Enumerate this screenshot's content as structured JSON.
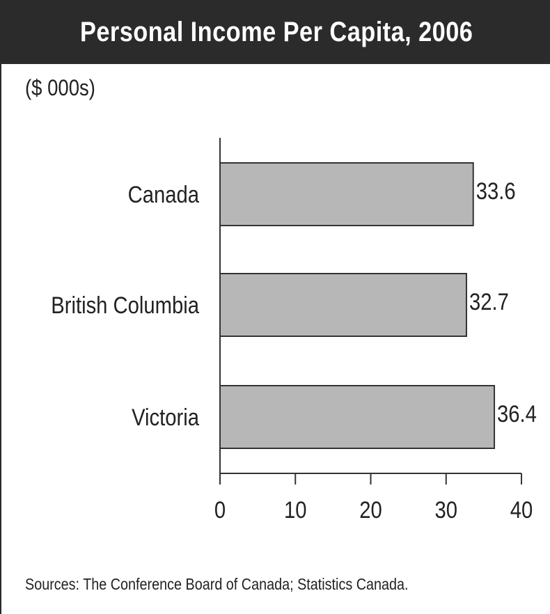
{
  "chart_data": {
    "type": "bar",
    "orientation": "horizontal",
    "title": "Personal Income Per Capita, 2006",
    "unit_label": "($ 000s)",
    "categories": [
      "Canada",
      "British Columbia",
      "Victoria"
    ],
    "values": [
      33.6,
      32.7,
      36.4
    ],
    "value_labels": [
      "33.6",
      "32.7",
      "36.4"
    ],
    "xlim": [
      0,
      40
    ],
    "xticks": [
      0,
      10,
      20,
      30,
      40
    ],
    "xtick_labels": [
      "0",
      "10",
      "20",
      "30",
      "40"
    ],
    "grid": false,
    "bar_color": "#b7b7b7",
    "bar_edge_color": "#333333",
    "source_note": "Sources: The Conference Board of Canada; Statistics Canada."
  },
  "colors": {
    "title_background": "#2b2b2b",
    "title_text": "#ffffff",
    "axis": "#333333"
  }
}
